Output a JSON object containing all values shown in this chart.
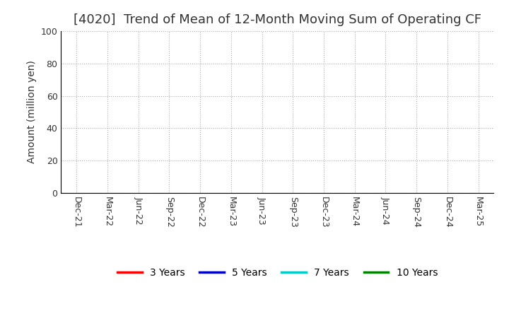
{
  "title": "[4020]  Trend of Mean of 12-Month Moving Sum of Operating CF",
  "ylabel": "Amount (million yen)",
  "ylim": [
    0,
    100
  ],
  "yticks": [
    0,
    20,
    40,
    60,
    80,
    100
  ],
  "background_color": "#ffffff",
  "grid_color": "#aaaaaa",
  "spine_color": "#000000",
  "title_color": "#333333",
  "x_tick_labels": [
    "Dec-21",
    "Mar-22",
    "Jun-22",
    "Sep-22",
    "Dec-22",
    "Mar-23",
    "Jun-23",
    "Sep-23",
    "Dec-23",
    "Mar-24",
    "Jun-24",
    "Sep-24",
    "Dec-24",
    "Mar-25"
  ],
  "legend_entries": [
    {
      "label": "3 Years",
      "color": "#ff0000"
    },
    {
      "label": "5 Years",
      "color": "#0000cc"
    },
    {
      "label": "7 Years",
      "color": "#00cccc"
    },
    {
      "label": "10 Years",
      "color": "#008000"
    }
  ],
  "title_fontsize": 13,
  "axis_label_fontsize": 10,
  "tick_fontsize": 9,
  "legend_fontsize": 10
}
